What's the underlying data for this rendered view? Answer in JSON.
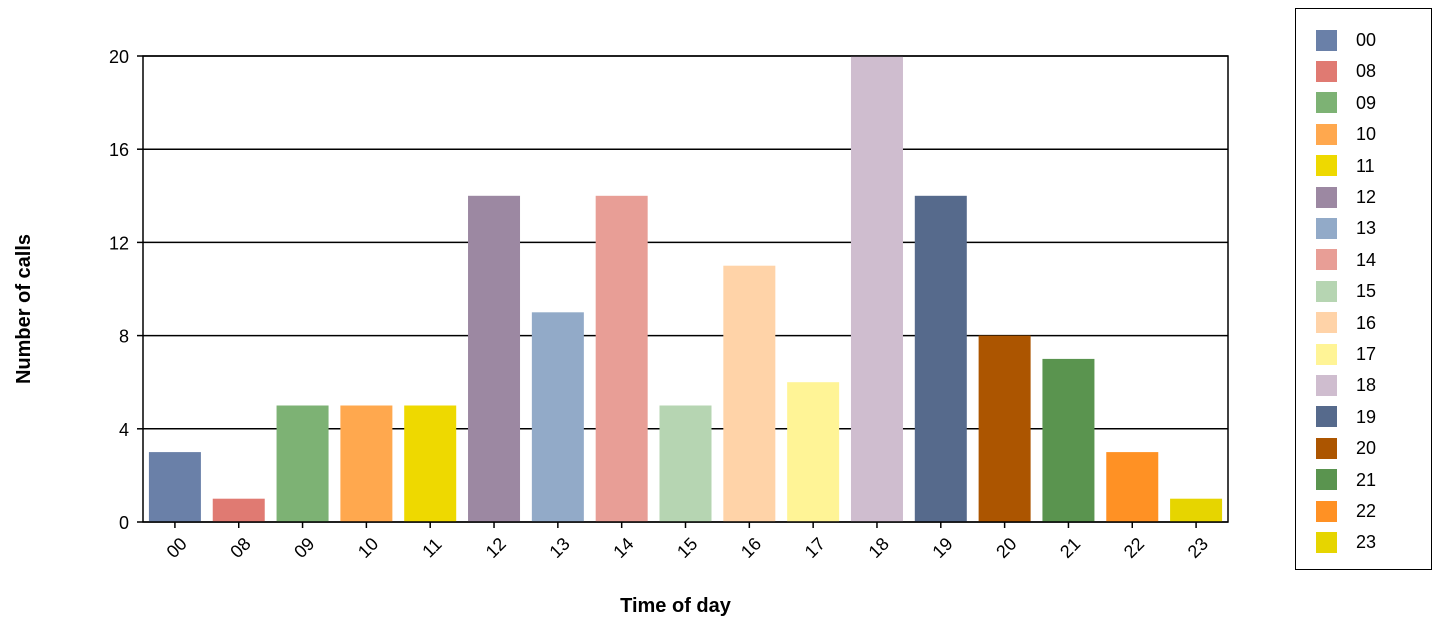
{
  "chart_data": {
    "type": "bar",
    "title": "",
    "xlabel": "Time of day",
    "ylabel": "Number of calls",
    "categories": [
      "00",
      "08",
      "09",
      "10",
      "11",
      "12",
      "13",
      "14",
      "15",
      "16",
      "17",
      "18",
      "19",
      "20",
      "21",
      "22",
      "23"
    ],
    "values": [
      3,
      1,
      5,
      5,
      5,
      14,
      9,
      14,
      5,
      11,
      6,
      20,
      14,
      8,
      7,
      3,
      1
    ],
    "colors": [
      "#6a80a8",
      "#e07a72",
      "#7db274",
      "#ffa84e",
      "#eed900",
      "#9c88a2",
      "#92aac8",
      "#e89e96",
      "#b6d5b2",
      "#ffd3a8",
      "#fff496",
      "#cfbdcf",
      "#566a8c",
      "#ac5500",
      "#5a944f",
      "#ff9124",
      "#e6d500"
    ],
    "ylim": [
      0,
      20
    ],
    "yticks": [
      0,
      4,
      8,
      12,
      16,
      20
    ],
    "grid": true,
    "legend": "right"
  }
}
